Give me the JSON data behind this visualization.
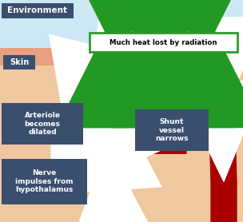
{
  "bg_top_color": "#cce8f4",
  "skin_bg_color": "#f0c8a0",
  "skin_surface_color": "#e8a080",
  "environment_box_color": "#3a4f6e",
  "environment_text": "Environment",
  "skin_label": "Skin",
  "heat_box_text": "Much heat lost by radiation",
  "heat_box_border": "#2a9c2a",
  "arteriole_label": "Arteriole\nbecomes\ndilated",
  "shunt_label": "Shunt\nvessel\nnarrows",
  "nerve_label": "Nerve\nimpulses from\nhypothalamus",
  "vessel_color": "#aa0000",
  "arrow_white": "#ffffff",
  "green_arrow_color": "#229922",
  "label_box_color": "#3a4f6e",
  "nerve_line_color": "#88ccee",
  "figsize": [
    3.04,
    2.78
  ],
  "dpi": 100
}
